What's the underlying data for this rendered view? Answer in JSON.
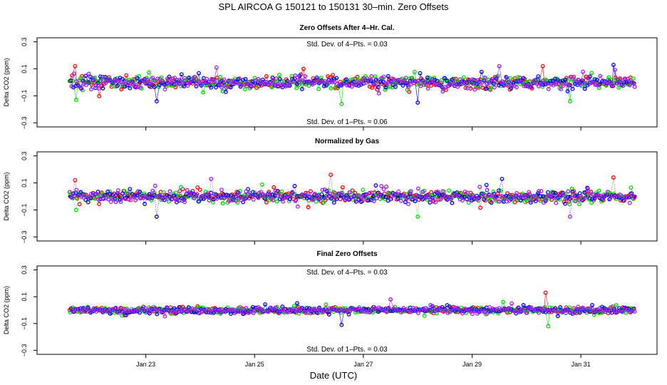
{
  "chart_data": {
    "type": "scatter",
    "title": "SPL    AIRCOA G    150121 to 150131    30–min. Zero Offsets",
    "xlabel": "Date (UTC)",
    "x_tick_labels": [
      "Jan 23",
      "Jan 25",
      "Jan 27",
      "Jan 29",
      "Jan 31"
    ],
    "x_tick_days": [
      23,
      25,
      27,
      29,
      31
    ],
    "xlim_days": [
      21.0,
      32.4
    ],
    "x_start_day": 21.6,
    "x_end_day": 32.0,
    "legend": "none",
    "grid": false,
    "series_colors": [
      "#ff0000",
      "#00dd00",
      "#0000ff",
      "#a020f0"
    ],
    "panels": [
      {
        "title": "Zero Offsets After 4–Hr. Cal.",
        "ylabel": "Delta CO2 (ppm)",
        "ylim": [
          -0.33,
          0.33
        ],
        "y_ticks": [
          0.3,
          0.1,
          -0.1,
          -0.3
        ],
        "y_tick_labels": [
          "0.3",
          "0.1",
          "−0.1",
          "−0.3"
        ],
        "annotation_top": "Std. Dev. of 4–Pts. =  0.03",
        "annotation_bottom": "Std. Dev. of 1–Pts. =  0.06",
        "spread": 0.045,
        "outliers": [
          [
            21.7,
            0.12
          ],
          [
            21.72,
            -0.13
          ],
          [
            23.2,
            -0.14
          ],
          [
            24.3,
            0.11
          ],
          [
            25.9,
            0.1
          ],
          [
            26.6,
            -0.16
          ],
          [
            28.0,
            -0.15
          ],
          [
            29.5,
            0.12
          ],
          [
            30.3,
            0.12
          ],
          [
            30.8,
            -0.14
          ],
          [
            31.6,
            0.13
          ]
        ]
      },
      {
        "title": "Normalized by Gas",
        "ylabel": "Delta CO2 (ppm)",
        "ylim": [
          -0.33,
          0.33
        ],
        "y_ticks": [
          0.3,
          0.1,
          -0.1,
          -0.3
        ],
        "y_tick_labels": [
          "0.3",
          "0.1",
          "−0.1",
          "−0.3"
        ],
        "annotation_top": "",
        "annotation_bottom": "",
        "spread": 0.045,
        "outliers": [
          [
            21.7,
            0.12
          ],
          [
            21.72,
            -0.1
          ],
          [
            23.2,
            -0.15
          ],
          [
            24.2,
            0.13
          ],
          [
            26.4,
            0.16
          ],
          [
            28.0,
            -0.15
          ],
          [
            29.55,
            0.13
          ],
          [
            30.8,
            -0.15
          ],
          [
            31.6,
            0.14
          ]
        ]
      },
      {
        "title": "Final Zero Offsets",
        "ylabel": "Delta CO2 (ppm)",
        "ylim": [
          -0.33,
          0.33
        ],
        "y_ticks": [
          0.3,
          0.1,
          -0.1,
          -0.3
        ],
        "y_tick_labels": [
          "0.3",
          "0.1",
          "−0.1",
          "−0.3"
        ],
        "annotation_top": "Std. Dev. of 4–Pts. =  0.03",
        "annotation_bottom": "Std. Dev. of 1–Pts. =  0.03",
        "spread": 0.025,
        "outliers": [
          [
            30.35,
            0.13
          ],
          [
            30.4,
            -0.12
          ],
          [
            26.6,
            -0.11
          ],
          [
            27.5,
            0.08
          ]
        ]
      }
    ]
  }
}
